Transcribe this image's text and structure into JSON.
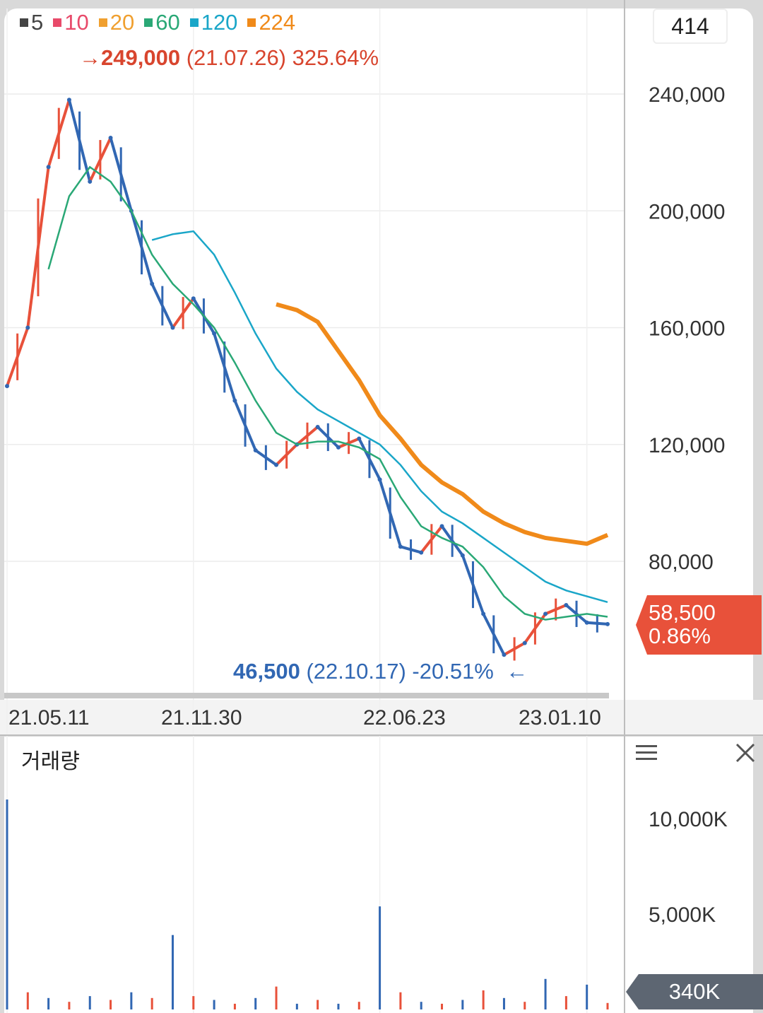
{
  "legend": [
    {
      "label": "5",
      "color": "#444444"
    },
    {
      "label": "10",
      "color": "#e84a6a"
    },
    {
      "label": "20",
      "color": "#f0a030"
    },
    {
      "label": "60",
      "color": "#2aa876"
    },
    {
      "label": "120",
      "color": "#1aa6c8"
    },
    {
      "label": "224",
      "color": "#f08a1a"
    }
  ],
  "top_badge": "414",
  "high_annotation": {
    "arrow": "→",
    "price": "249,000",
    "date": "(21.07.26)",
    "pct": "325.64%"
  },
  "low_annotation": {
    "price": "46,500",
    "date": "(22.10.17)",
    "pct": "-20.51%",
    "arrow": "←"
  },
  "current": {
    "price": "58,500",
    "change": "0.86%"
  },
  "volume_panel": {
    "title": "거래량",
    "current_volume": "340K",
    "menu_icon": "menu-icon",
    "close_icon": "close-icon"
  },
  "colors": {
    "up": "#e8513a",
    "down": "#3167b3"
  },
  "chart_data": [
    {
      "type": "line",
      "title": "",
      "x_tick_labels": [
        "21.05.11",
        "21.11.30",
        "22.06.23",
        "23.01.10"
      ],
      "y_tick_labels": [
        "240,000",
        "200,000",
        "160,000",
        "120,000",
        "80,000"
      ],
      "y_ticks": [
        240000,
        200000,
        160000,
        120000,
        80000
      ],
      "ylim": [
        45000,
        260000
      ],
      "x": [
        "21.05.11",
        "21.06.10",
        "21.07.05",
        "21.07.26",
        "21.08.20",
        "21.09.15",
        "21.10.05",
        "21.10.25",
        "21.11.15",
        "21.11.30",
        "21.12.20",
        "22.01.15",
        "22.02.10",
        "22.03.05",
        "22.03.25",
        "22.04.15",
        "22.05.05",
        "22.05.25",
        "22.06.23",
        "22.07.15",
        "22.08.05",
        "22.08.25",
        "22.09.15",
        "22.10.05",
        "22.10.17",
        "22.11.10",
        "22.12.05",
        "22.12.25",
        "23.01.10",
        "23.02.01"
      ],
      "series": [
        {
          "name": "price",
          "values": [
            140000,
            160000,
            215000,
            238000,
            210000,
            225000,
            200000,
            175000,
            160000,
            170000,
            158000,
            135000,
            118000,
            113000,
            120000,
            126000,
            119000,
            122000,
            108000,
            85000,
            83000,
            92000,
            82000,
            62000,
            48000,
            52000,
            62000,
            65000,
            59000,
            58500
          ]
        }
      ],
      "moving_averages": [
        {
          "name": "60",
          "values": [
            null,
            null,
            180000,
            205000,
            215000,
            210000,
            200000,
            185000,
            175000,
            168000,
            160000,
            148000,
            135000,
            124000,
            120000,
            121000,
            121000,
            119000,
            115000,
            102000,
            92000,
            88000,
            85000,
            78000,
            68000,
            62000,
            60000,
            61000,
            62000,
            61000
          ]
        },
        {
          "name": "120",
          "values": [
            null,
            null,
            null,
            null,
            null,
            null,
            null,
            190000,
            192000,
            193000,
            185000,
            172000,
            158000,
            146000,
            138000,
            132000,
            128000,
            124000,
            120000,
            113000,
            104000,
            97000,
            93000,
            88000,
            83000,
            78000,
            73000,
            70000,
            68000,
            66000
          ]
        },
        {
          "name": "224",
          "values": [
            null,
            null,
            null,
            null,
            null,
            null,
            null,
            null,
            null,
            null,
            null,
            null,
            null,
            168000,
            166000,
            162000,
            152000,
            142000,
            130000,
            122000,
            113000,
            107000,
            103000,
            97000,
            93000,
            90000,
            88000,
            87000,
            86000,
            89000
          ]
        }
      ]
    },
    {
      "type": "bar",
      "title": "거래량",
      "y_tick_labels": [
        "10,000K",
        "5,000K"
      ],
      "y_ticks": [
        10000,
        5000
      ],
      "ylim": [
        0,
        11500
      ],
      "unit": "K",
      "values": [
        11000,
        900,
        600,
        400,
        700,
        500,
        900,
        600,
        3900,
        700,
        500,
        300,
        600,
        1200,
        300,
        500,
        300,
        400,
        5400,
        900,
        400,
        300,
        500,
        1000,
        600,
        400,
        1600,
        700,
        1300,
        340
      ]
    }
  ]
}
